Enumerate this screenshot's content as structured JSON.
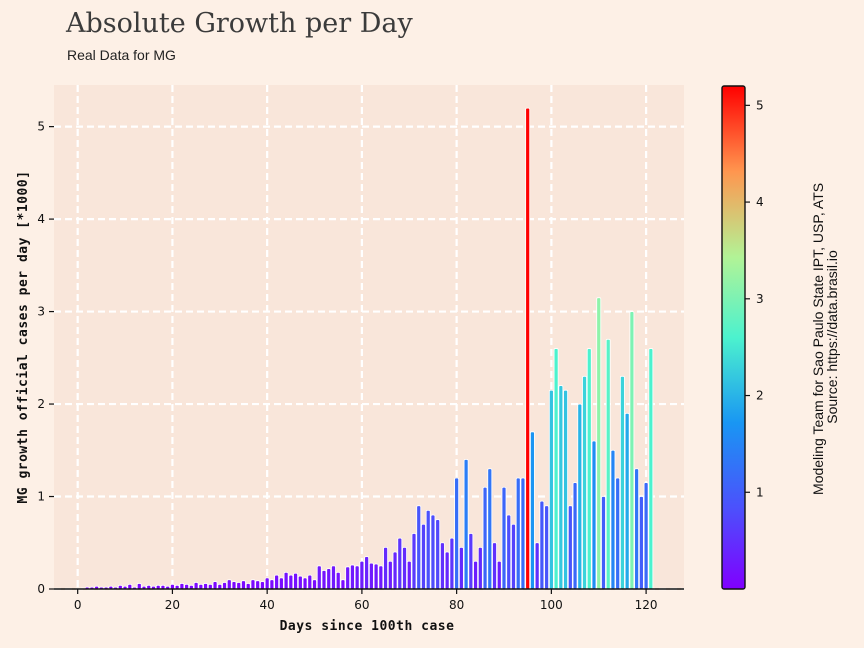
{
  "header": {
    "title": "Absolute Growth per Day",
    "subtitle": "Real Data for MG"
  },
  "credit": {
    "line1": "Modeling Team for Sao Paulo State IPT, USP, ATS",
    "line2": "Source: https://data.brasil.io"
  },
  "colors": {
    "background": "#fdf0e6",
    "plot_background": "#f9e6da",
    "grid": "#ffffff"
  },
  "chart_data": {
    "type": "bar",
    "xlabel": "Days since 100th case",
    "ylabel": "MG growth official cases per day [*1000]",
    "xlim": [
      -5,
      128
    ],
    "ylim": [
      0,
      5.45
    ],
    "xticks": [
      0,
      20,
      40,
      60,
      80,
      100,
      120
    ],
    "yticks": [
      0,
      1,
      2,
      3,
      4,
      5
    ],
    "grid": true,
    "colormap": "rainbow",
    "colorbar": {
      "min": 0,
      "max": 5.2,
      "ticks": [
        1,
        2,
        3,
        4,
        5
      ]
    },
    "x": [
      0,
      1,
      2,
      3,
      4,
      5,
      6,
      7,
      8,
      9,
      10,
      11,
      12,
      13,
      14,
      15,
      16,
      17,
      18,
      19,
      20,
      21,
      22,
      23,
      24,
      25,
      26,
      27,
      28,
      29,
      30,
      31,
      32,
      33,
      34,
      35,
      36,
      37,
      38,
      39,
      40,
      41,
      42,
      43,
      44,
      45,
      46,
      47,
      48,
      49,
      50,
      51,
      52,
      53,
      54,
      55,
      56,
      57,
      58,
      59,
      60,
      61,
      62,
      63,
      64,
      65,
      66,
      67,
      68,
      69,
      70,
      71,
      72,
      73,
      74,
      75,
      76,
      77,
      78,
      79,
      80,
      81,
      82,
      83,
      84,
      85,
      86,
      87,
      88,
      89,
      90,
      91,
      92,
      93,
      94,
      95,
      96,
      97,
      98,
      99,
      100,
      101,
      102,
      103,
      104,
      105,
      106,
      107,
      108,
      109,
      110,
      111,
      112,
      113,
      114,
      115,
      116,
      117,
      118,
      119,
      120,
      121
    ],
    "values": [
      0.01,
      0.01,
      0.02,
      0.02,
      0.03,
      0.02,
      0.02,
      0.03,
      0.02,
      0.04,
      0.03,
      0.05,
      0.02,
      0.06,
      0.03,
      0.04,
      0.03,
      0.04,
      0.04,
      0.03,
      0.05,
      0.04,
      0.06,
      0.05,
      0.04,
      0.07,
      0.05,
      0.06,
      0.05,
      0.08,
      0.05,
      0.07,
      0.1,
      0.08,
      0.07,
      0.09,
      0.06,
      0.1,
      0.09,
      0.08,
      0.12,
      0.1,
      0.15,
      0.12,
      0.18,
      0.15,
      0.17,
      0.14,
      0.12,
      0.15,
      0.1,
      0.25,
      0.2,
      0.22,
      0.25,
      0.18,
      0.1,
      0.24,
      0.26,
      0.25,
      0.3,
      0.35,
      0.28,
      0.27,
      0.25,
      0.45,
      0.3,
      0.4,
      0.55,
      0.45,
      0.3,
      0.6,
      0.9,
      0.7,
      0.85,
      0.8,
      0.75,
      0.5,
      0.4,
      0.55,
      1.2,
      0.45,
      1.4,
      0.6,
      0.3,
      0.45,
      1.1,
      1.3,
      0.5,
      0.3,
      1.1,
      0.8,
      0.7,
      1.2,
      1.2,
      5.2,
      1.7,
      0.5,
      0.95,
      0.9,
      2.15,
      2.6,
      2.2,
      2.15,
      0.9,
      1.15,
      2.0,
      2.3,
      2.6,
      1.6,
      3.15,
      1.0,
      2.7,
      1.5,
      1.2,
      2.3,
      1.9,
      3.0,
      1.3,
      1.0,
      1.15,
      2.6
    ]
  }
}
